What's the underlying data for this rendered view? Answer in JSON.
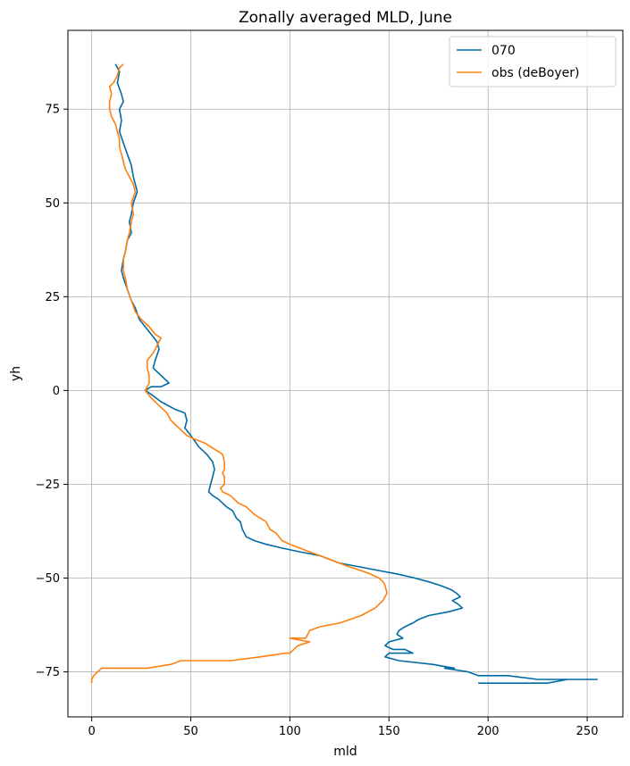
{
  "chart_data": {
    "type": "line",
    "title": "Zonally averaged MLD, June",
    "xlabel": "mld",
    "ylabel": "yh",
    "xlim": [
      -12,
      268
    ],
    "ylim": [
      -87,
      96
    ],
    "xticks": [
      0,
      50,
      100,
      150,
      200,
      250
    ],
    "yticks": [
      -75,
      -50,
      -25,
      0,
      25,
      50,
      75
    ],
    "xtick_labels": [
      "0",
      "50",
      "100",
      "150",
      "200",
      "250"
    ],
    "ytick_labels": [
      "−75",
      "−50",
      "−25",
      "0",
      "25",
      "50",
      "75"
    ],
    "grid": true,
    "legend_position": "upper right",
    "series": [
      {
        "name": "070",
        "color": "#006ba4",
        "points": [
          [
            12,
            87
          ],
          [
            14,
            85
          ],
          [
            13,
            82
          ],
          [
            15,
            79
          ],
          [
            16,
            77
          ],
          [
            14,
            75
          ],
          [
            15,
            72
          ],
          [
            14,
            69
          ],
          [
            16,
            66
          ],
          [
            18,
            63
          ],
          [
            20,
            60
          ],
          [
            21,
            57
          ],
          [
            22,
            55
          ],
          [
            23,
            53
          ],
          [
            21,
            50
          ],
          [
            20,
            47
          ],
          [
            19,
            45
          ],
          [
            20,
            42
          ],
          [
            18,
            40
          ],
          [
            17,
            37
          ],
          [
            16,
            35
          ],
          [
            15,
            32
          ],
          [
            16,
            30
          ],
          [
            18,
            27
          ],
          [
            20,
            24
          ],
          [
            22,
            22
          ],
          [
            24,
            19
          ],
          [
            27,
            17
          ],
          [
            30,
            15
          ],
          [
            33,
            13
          ],
          [
            34,
            11
          ],
          [
            32,
            8
          ],
          [
            31,
            6
          ],
          [
            35,
            4
          ],
          [
            39,
            2
          ],
          [
            35,
            1
          ],
          [
            30,
            1
          ],
          [
            27,
            0
          ],
          [
            30,
            -1
          ],
          [
            35,
            -3
          ],
          [
            42,
            -5
          ],
          [
            47,
            -6
          ],
          [
            48,
            -8
          ],
          [
            47,
            -10
          ],
          [
            50,
            -12
          ],
          [
            54,
            -15
          ],
          [
            58,
            -17
          ],
          [
            61,
            -19
          ],
          [
            62,
            -21
          ],
          [
            61,
            -23
          ],
          [
            60,
            -25
          ],
          [
            59,
            -27
          ],
          [
            61,
            -28
          ],
          [
            64,
            -29
          ],
          [
            68,
            -31
          ],
          [
            71,
            -32
          ],
          [
            73,
            -34
          ],
          [
            75,
            -35
          ],
          [
            76,
            -37
          ],
          [
            78,
            -39
          ],
          [
            82,
            -40
          ],
          [
            88,
            -41
          ],
          [
            96,
            -42
          ],
          [
            105,
            -43
          ],
          [
            115,
            -44
          ],
          [
            125,
            -46
          ],
          [
            135,
            -47
          ],
          [
            145,
            -48
          ],
          [
            155,
            -49
          ],
          [
            163,
            -50
          ],
          [
            170,
            -51
          ],
          [
            176,
            -52
          ],
          [
            181,
            -53
          ],
          [
            184,
            -54
          ],
          [
            186,
            -55
          ],
          [
            182,
            -56
          ],
          [
            185,
            -57
          ],
          [
            187,
            -58
          ],
          [
            180,
            -59
          ],
          [
            170,
            -60
          ],
          [
            165,
            -61
          ],
          [
            162,
            -62
          ],
          [
            158,
            -63
          ],
          [
            155,
            -64
          ],
          [
            154,
            -65
          ],
          [
            157,
            -66
          ],
          [
            150,
            -67
          ],
          [
            148,
            -68
          ],
          [
            152,
            -69
          ],
          [
            158,
            -69
          ],
          [
            162,
            -70
          ],
          [
            150,
            -70
          ],
          [
            148,
            -71
          ],
          [
            155,
            -72
          ],
          [
            172,
            -73
          ],
          [
            183,
            -74
          ],
          [
            178,
            -74
          ],
          [
            190,
            -75
          ],
          [
            195,
            -76
          ],
          [
            210,
            -76
          ],
          [
            225,
            -77
          ],
          [
            255,
            -77
          ],
          [
            240,
            -77
          ],
          [
            230,
            -78
          ],
          [
            210,
            -78
          ],
          [
            195,
            -78
          ]
        ]
      },
      {
        "name": "obs (deBoyer)",
        "color": "#ff800e",
        "points": [
          [
            16,
            87
          ],
          [
            14,
            86
          ],
          [
            13,
            84
          ],
          [
            11,
            82
          ],
          [
            9,
            81
          ],
          [
            10,
            79
          ],
          [
            9,
            77
          ],
          [
            9,
            75
          ],
          [
            10,
            73
          ],
          [
            12,
            71
          ],
          [
            13,
            69
          ],
          [
            14,
            67
          ],
          [
            14,
            65
          ],
          [
            15,
            63
          ],
          [
            16,
            61
          ],
          [
            17,
            59
          ],
          [
            19,
            57
          ],
          [
            21,
            55
          ],
          [
            22,
            53
          ],
          [
            20,
            50
          ],
          [
            21,
            47
          ],
          [
            20,
            45
          ],
          [
            19,
            42
          ],
          [
            18,
            40
          ],
          [
            17,
            37
          ],
          [
            16,
            35
          ],
          [
            16,
            32
          ],
          [
            17,
            30
          ],
          [
            18,
            27
          ],
          [
            20,
            24
          ],
          [
            22,
            21
          ],
          [
            25,
            19
          ],
          [
            29,
            17
          ],
          [
            32,
            15
          ],
          [
            35,
            14
          ],
          [
            33,
            12
          ],
          [
            31,
            10
          ],
          [
            28,
            8
          ],
          [
            28,
            6
          ],
          [
            29,
            4
          ],
          [
            29,
            2
          ],
          [
            27,
            0
          ],
          [
            30,
            -2
          ],
          [
            34,
            -4
          ],
          [
            38,
            -6
          ],
          [
            40,
            -8
          ],
          [
            44,
            -10
          ],
          [
            48,
            -12
          ],
          [
            52,
            -13
          ],
          [
            57,
            -14
          ],
          [
            60,
            -15
          ],
          [
            63,
            -16
          ],
          [
            66,
            -17
          ],
          [
            67,
            -19
          ],
          [
            67,
            -21
          ],
          [
            66,
            -22
          ],
          [
            67,
            -23
          ],
          [
            67,
            -25
          ],
          [
            65,
            -26
          ],
          [
            66,
            -27
          ],
          [
            70,
            -28
          ],
          [
            74,
            -30
          ],
          [
            78,
            -31
          ],
          [
            82,
            -33
          ],
          [
            85,
            -34
          ],
          [
            88,
            -35
          ],
          [
            90,
            -37
          ],
          [
            93,
            -38
          ],
          [
            96,
            -40
          ],
          [
            100,
            -41
          ],
          [
            105,
            -42
          ],
          [
            110,
            -43
          ],
          [
            115,
            -44
          ],
          [
            120,
            -45
          ],
          [
            125,
            -46
          ],
          [
            130,
            -47
          ],
          [
            136,
            -48
          ],
          [
            141,
            -49
          ],
          [
            145,
            -50
          ],
          [
            147,
            -51
          ],
          [
            148,
            -52
          ],
          [
            149,
            -54
          ],
          [
            147,
            -56
          ],
          [
            143,
            -58
          ],
          [
            136,
            -60
          ],
          [
            125,
            -62
          ],
          [
            115,
            -63
          ],
          [
            110,
            -64
          ],
          [
            108,
            -66
          ],
          [
            100,
            -66
          ],
          [
            110,
            -67
          ],
          [
            104,
            -68
          ],
          [
            102,
            -69
          ],
          [
            100,
            -70
          ],
          [
            98,
            -70
          ],
          [
            85,
            -71
          ],
          [
            70,
            -72
          ],
          [
            55,
            -72
          ],
          [
            45,
            -72
          ],
          [
            40,
            -73
          ],
          [
            28,
            -74
          ],
          [
            15,
            -74
          ],
          [
            5,
            -74
          ],
          [
            3,
            -75
          ],
          [
            1,
            -76
          ],
          [
            0,
            -77
          ],
          [
            0,
            -78
          ]
        ]
      }
    ]
  }
}
